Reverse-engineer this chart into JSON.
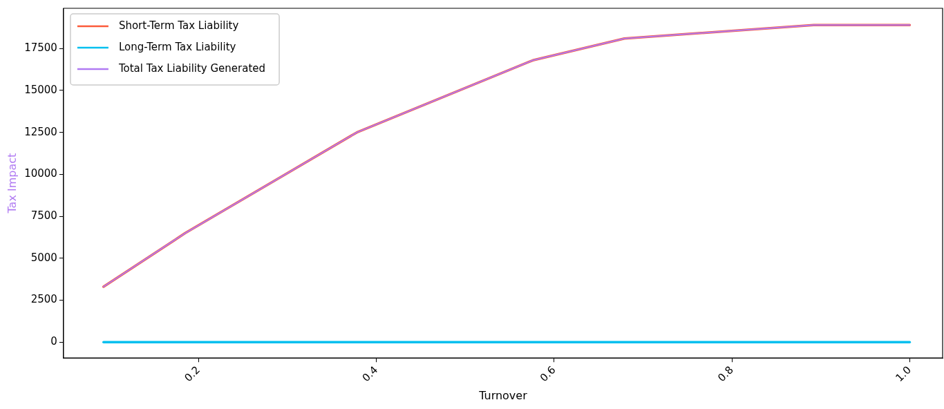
{
  "chart_data": {
    "type": "line",
    "xlabel": "Turnover",
    "ylabel": "Tax Impact",
    "x": [
      0.093,
      0.185,
      0.378,
      0.576,
      0.679,
      0.892,
      1.0
    ],
    "series": [
      {
        "name": "Short-Term Tax Liability",
        "color": "#fc5a3a",
        "values": [
          3300,
          6500,
          12500,
          16800,
          18100,
          18900,
          18900
        ]
      },
      {
        "name": "Long-Term Tax Liability",
        "color": "#00bfef",
        "values": [
          0,
          0,
          0,
          0,
          0,
          0,
          0
        ]
      },
      {
        "name": "Total Tax Liability Generated",
        "color": "#b07af2",
        "values": [
          3300,
          6500,
          12500,
          16800,
          18100,
          18900,
          18900
        ]
      }
    ],
    "xlim": [
      0.048,
      1.037
    ],
    "xticks": [
      0.2,
      0.4,
      0.6,
      0.8,
      {
        "value": 1,
        "label": "1.0"
      }
    ],
    "ylim": [
      -950,
      19900
    ],
    "yticks": [
      0,
      2500,
      5000,
      7500,
      10000,
      12500,
      15000,
      17500
    ],
    "grid": false,
    "legend": "top left",
    "marker": "none",
    "line_style": "solid"
  }
}
